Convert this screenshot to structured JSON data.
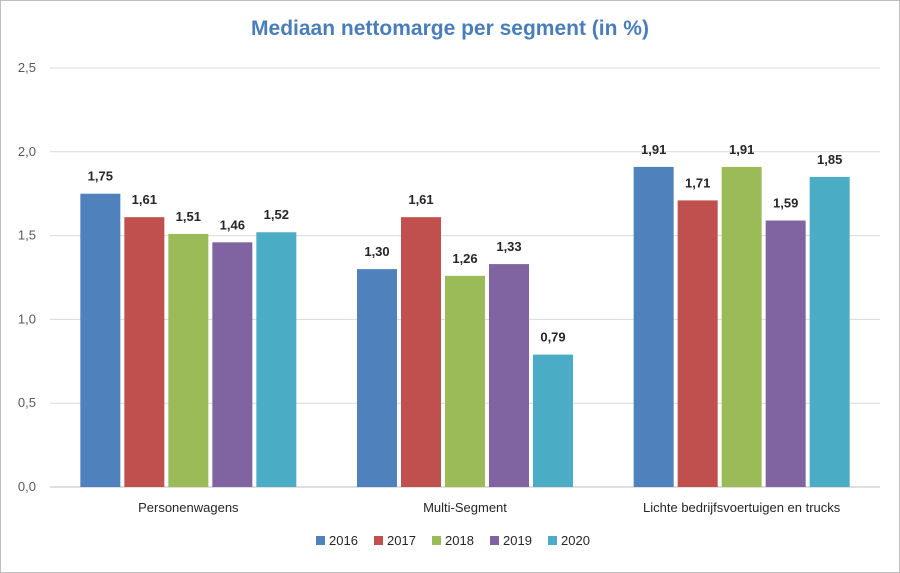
{
  "chart_data": {
    "type": "bar",
    "title": "Mediaan nettomarge per segment (in %)",
    "categories": [
      "Personenwagens",
      "Multi-Segment",
      "Lichte bedrijfsvoertuigen en trucks"
    ],
    "series": [
      {
        "name": "2016",
        "color": "#4f81bd",
        "values": [
          1.75,
          1.3,
          1.91
        ],
        "labels": [
          "1,75",
          "1,30",
          "1,91"
        ]
      },
      {
        "name": "2017",
        "color": "#c0504d",
        "values": [
          1.61,
          1.61,
          1.71
        ],
        "labels": [
          "1,61",
          "1,61",
          "1,71"
        ]
      },
      {
        "name": "2018",
        "color": "#9bbb59",
        "values": [
          1.51,
          1.26,
          1.91
        ],
        "labels": [
          "1,51",
          "1,26",
          "1,91"
        ]
      },
      {
        "name": "2019",
        "color": "#8064a2",
        "values": [
          1.46,
          1.33,
          1.59
        ],
        "labels": [
          "1,46",
          "1,33",
          "1,59"
        ]
      },
      {
        "name": "2020",
        "color": "#4bacc6",
        "values": [
          1.52,
          0.79,
          1.85
        ],
        "labels": [
          "1,52",
          "0,79",
          "1,85"
        ]
      }
    ],
    "ylim": [
      0,
      2.5
    ],
    "yticks": [
      0,
      0.5,
      1.0,
      1.5,
      2.0,
      2.5
    ],
    "ytick_labels": [
      "0,0",
      "0,5",
      "1,0",
      "1,5",
      "2,0",
      "2,5"
    ],
    "grid": true,
    "legend_position": "bottom"
  }
}
